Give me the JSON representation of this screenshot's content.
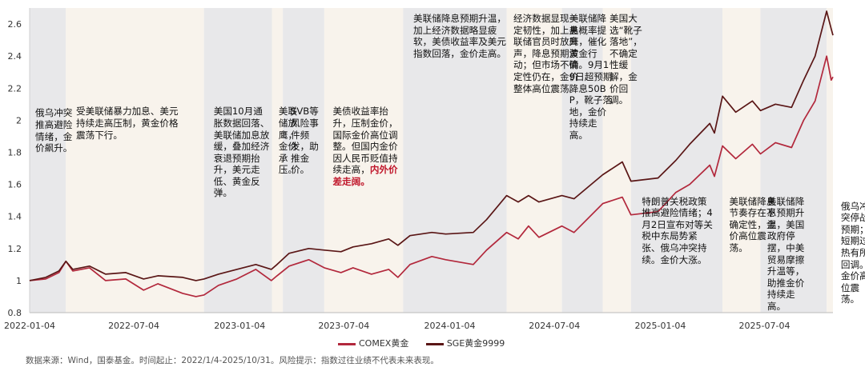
{
  "chart_data": {
    "type": "line",
    "title": "",
    "xlabel": "",
    "ylabel": "",
    "ylim": [
      0.8,
      2.7
    ],
    "yticks": [
      "0.8",
      "1",
      "1.2",
      "1.4",
      "1.6",
      "1.8",
      "2",
      "2.2",
      "2.4",
      "2.6"
    ],
    "xticks": [
      "2022-01-04",
      "2022-07-04",
      "2023-01-04",
      "2023-07-04",
      "2024-01-04",
      "2024-07-04",
      "2025-01-04",
      "2025-07-04"
    ],
    "x_range": [
      "2022-01-04",
      "2025-10-31"
    ],
    "legend_position": "bottom",
    "series": [
      {
        "name": "COMEX黄金",
        "color": "#b2283c",
        "points": [
          [
            "2022-01-04",
            1.0
          ],
          [
            "2022-02-01",
            1.01
          ],
          [
            "2022-02-24",
            1.05
          ],
          [
            "2022-03-08",
            1.12
          ],
          [
            "2022-03-20",
            1.06
          ],
          [
            "2022-04-18",
            1.08
          ],
          [
            "2022-05-16",
            1.0
          ],
          [
            "2022-06-20",
            1.01
          ],
          [
            "2022-07-21",
            0.94
          ],
          [
            "2022-08-15",
            0.98
          ],
          [
            "2022-09-27",
            0.92
          ],
          [
            "2022-10-20",
            0.9
          ],
          [
            "2022-11-03",
            0.91
          ],
          [
            "2022-11-28",
            0.97
          ],
          [
            "2022-12-30",
            1.01
          ],
          [
            "2023-02-01",
            1.07
          ],
          [
            "2023-02-28",
            1.0
          ],
          [
            "2023-03-10",
            1.03
          ],
          [
            "2023-03-31",
            1.09
          ],
          [
            "2023-05-04",
            1.13
          ],
          [
            "2023-05-31",
            1.08
          ],
          [
            "2023-06-29",
            1.05
          ],
          [
            "2023-07-20",
            1.08
          ],
          [
            "2023-08-21",
            1.04
          ],
          [
            "2023-09-20",
            1.07
          ],
          [
            "2023-10-06",
            1.02
          ],
          [
            "2023-10-27",
            1.1
          ],
          [
            "2023-12-04",
            1.15
          ],
          [
            "2023-12-28",
            1.13
          ],
          [
            "2024-02-14",
            1.1
          ],
          [
            "2024-03-08",
            1.19
          ],
          [
            "2024-04-12",
            1.3
          ],
          [
            "2024-05-02",
            1.26
          ],
          [
            "2024-05-20",
            1.34
          ],
          [
            "2024-06-07",
            1.27
          ],
          [
            "2024-07-17",
            1.34
          ],
          [
            "2024-08-07",
            1.3
          ],
          [
            "2024-09-26",
            1.48
          ],
          [
            "2024-10-30",
            1.52
          ],
          [
            "2024-11-14",
            1.41
          ],
          [
            "2024-12-31",
            1.43
          ],
          [
            "2025-01-31",
            1.55
          ],
          [
            "2025-02-24",
            1.6
          ],
          [
            "2025-03-31",
            1.72
          ],
          [
            "2025-04-08",
            1.65
          ],
          [
            "2025-04-22",
            1.84
          ],
          [
            "2025-05-15",
            1.76
          ],
          [
            "2025-06-13",
            1.85
          ],
          [
            "2025-06-27",
            1.79
          ],
          [
            "2025-07-23",
            1.86
          ],
          [
            "2025-08-20",
            1.83
          ],
          [
            "2025-09-10",
            2.0
          ],
          [
            "2025-09-30",
            2.12
          ],
          [
            "2025-10-20",
            2.4
          ],
          [
            "2025-10-28",
            2.25
          ],
          [
            "2025-10-31",
            2.27
          ]
        ]
      },
      {
        "name": "SGE黄金9999",
        "color": "#5a1616",
        "points": [
          [
            "2022-01-04",
            1.0
          ],
          [
            "2022-02-01",
            1.02
          ],
          [
            "2022-02-24",
            1.06
          ],
          [
            "2022-03-08",
            1.12
          ],
          [
            "2022-03-20",
            1.07
          ],
          [
            "2022-04-18",
            1.09
          ],
          [
            "2022-05-16",
            1.04
          ],
          [
            "2022-06-20",
            1.05
          ],
          [
            "2022-07-21",
            1.01
          ],
          [
            "2022-08-15",
            1.03
          ],
          [
            "2022-09-27",
            1.02
          ],
          [
            "2022-10-20",
            1.0
          ],
          [
            "2022-11-03",
            1.01
          ],
          [
            "2022-11-28",
            1.04
          ],
          [
            "2022-12-30",
            1.07
          ],
          [
            "2023-02-01",
            1.1
          ],
          [
            "2023-02-28",
            1.07
          ],
          [
            "2023-03-10",
            1.1
          ],
          [
            "2023-03-31",
            1.17
          ],
          [
            "2023-05-04",
            1.2
          ],
          [
            "2023-05-31",
            1.19
          ],
          [
            "2023-06-29",
            1.18
          ],
          [
            "2023-07-20",
            1.21
          ],
          [
            "2023-08-21",
            1.23
          ],
          [
            "2023-09-20",
            1.26
          ],
          [
            "2023-10-06",
            1.22
          ],
          [
            "2023-10-27",
            1.28
          ],
          [
            "2023-12-04",
            1.3
          ],
          [
            "2023-12-28",
            1.29
          ],
          [
            "2024-02-14",
            1.3
          ],
          [
            "2024-03-08",
            1.38
          ],
          [
            "2024-04-12",
            1.53
          ],
          [
            "2024-05-02",
            1.49
          ],
          [
            "2024-05-20",
            1.53
          ],
          [
            "2024-06-07",
            1.49
          ],
          [
            "2024-07-17",
            1.53
          ],
          [
            "2024-08-07",
            1.51
          ],
          [
            "2024-09-26",
            1.66
          ],
          [
            "2024-10-30",
            1.74
          ],
          [
            "2024-11-14",
            1.62
          ],
          [
            "2024-12-31",
            1.64
          ],
          [
            "2025-01-31",
            1.75
          ],
          [
            "2025-02-24",
            1.85
          ],
          [
            "2025-03-31",
            1.98
          ],
          [
            "2025-04-08",
            1.92
          ],
          [
            "2025-04-22",
            2.15
          ],
          [
            "2025-05-15",
            2.05
          ],
          [
            "2025-06-13",
            2.12
          ],
          [
            "2025-06-27",
            2.06
          ],
          [
            "2025-07-23",
            2.1
          ],
          [
            "2025-08-20",
            2.08
          ],
          [
            "2025-09-10",
            2.25
          ],
          [
            "2025-09-30",
            2.4
          ],
          [
            "2025-10-20",
            2.68
          ],
          [
            "2025-10-28",
            2.57
          ],
          [
            "2025-10-31",
            2.53
          ]
        ]
      }
    ],
    "shaded_periods": [
      [
        "2022-01-04",
        "2022-03-08"
      ],
      [
        "2022-03-08",
        "2022-11-03"
      ],
      [
        "2022-11-03",
        "2023-03-01"
      ],
      [
        "2023-03-01",
        "2023-03-20"
      ],
      [
        "2023-03-20",
        "2023-05-31"
      ],
      [
        "2023-05-31",
        "2023-10-15"
      ],
      [
        "2023-10-15",
        "2024-04-12"
      ],
      [
        "2024-04-12",
        "2024-07-17"
      ],
      [
        "2024-07-17",
        "2024-09-26"
      ],
      [
        "2024-09-26",
        "2024-11-14"
      ],
      [
        "2024-11-14",
        "2025-04-22"
      ],
      [
        "2025-04-22",
        "2025-06-27"
      ],
      [
        "2025-06-27",
        "2025-10-20"
      ],
      [
        "2025-10-20",
        "2025-10-31"
      ]
    ],
    "annotations": [
      {
        "date": "2022-01-04",
        "y": 2.08,
        "width": 56,
        "text": "俄乌冲突推高避险情绪，金价飙升。"
      },
      {
        "date": "2022-03-16",
        "y": 2.09,
        "width": 135,
        "text": "受美联储暴力加息、美元持续走高压制，黄金价格震荡下行。"
      },
      {
        "date": "2022-11-10",
        "y": 2.09,
        "width": 72,
        "text": "美国10月通胀数据回落、美联储加息放缓，叠加经济衰退预期抬升，美元走低、黄金反弹。"
      },
      {
        "date": "2023-03-03",
        "y": 2.09,
        "width": 30,
        "text": "美联储放鹰，金价承压。"
      },
      {
        "date": "2023-03-24",
        "y": 2.09,
        "width": 40,
        "text": "SVB等风险事件频发，助推金价。"
      },
      {
        "date": "2023-06-05",
        "y": 2.09,
        "width": 90,
        "text": "美债收益率抬升，压制金价，国际金价高位调整。但国内金价因人民币贬值持续走高，",
        "highlight": "内外价差走阔。"
      },
      {
        "date": "2023-10-23",
        "y": 2.67,
        "width": 125,
        "text": "美联储降息预期升温，加上经济数据略显疲软，美债收益率及美元指数回落，金价走高。"
      },
      {
        "date": "2024-04-14",
        "y": 2.67,
        "width": 82,
        "text": "经济数据显现一定韧性，加上美联储官员时放鹰声，降息预期波动；但市场不确定性仍在，金价整体高位震荡。"
      },
      {
        "date": "2024-07-20",
        "y": 2.67,
        "width": 56,
        "text": "美联储降息概率提升，催化黄金行情。9月19日超预期降息50BP，靴子落地，金价持续走高。"
      },
      {
        "date": "2024-09-28",
        "y": 2.67,
        "width": 44,
        "text": "美国大选“靴子落地”，不确定性缓解，金价回调。"
      },
      {
        "date": "2024-11-23",
        "y": 1.53,
        "width": 92,
        "text": "特朗普关税政策推高避险情绪；4月2日宣布对等关税中东局势紧张、俄乌冲突持续。金价大涨。"
      },
      {
        "date": "2025-04-24",
        "y": 1.53,
        "width": 58,
        "text": "美联储降息节奏存在不确定性，金价高位震荡。"
      },
      {
        "date": "2025-06-29",
        "y": 1.53,
        "width": 56,
        "text": "美联储降息预期升温，美国政府停摆，中美贸易摩擦升温等，助推金价持续走高。"
      },
      {
        "date": "2025-11-04",
        "y": 1.5,
        "width": 44,
        "text": "俄乌冲突停战预期；短期过热有所回调。金价高位震荡。"
      }
    ]
  },
  "footer": {
    "source": "数据来源：Wind，国泰基金。时间起止：2022/1/4-2025/10/31。风险提示：指数过往业绩不代表未来表现。"
  }
}
